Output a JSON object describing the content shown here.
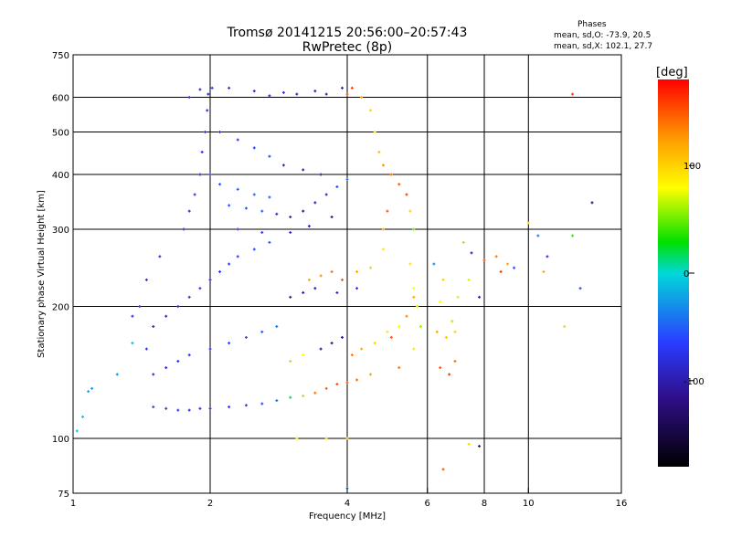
{
  "header": {
    "title_line1": "Tromsø 20141215 20:56:00–20:57:43",
    "title_line2": "RwPretec (8p)"
  },
  "phases_box": {
    "title": "Phases",
    "line_O": "mean, sd,O: -73.9, 20.5",
    "line_X": "mean, sd,X: 102.1, 27.7"
  },
  "colorbar": {
    "unit_label": "[deg]",
    "ticks": [
      {
        "value": 100,
        "label": "100"
      },
      {
        "value": 0,
        "label": "0"
      },
      {
        "value": -100,
        "label": "-100"
      }
    ],
    "range": [
      -180,
      180
    ]
  },
  "chart_data": {
    "type": "scatter",
    "title": "Tromsø 20141215 20:56:00–20:57:43",
    "subtitle": "RwPretec (8p)",
    "xlabel": "Frequency [MHz]",
    "ylabel": "Stationary phase Virtual Height [km]",
    "x_scale": "log",
    "y_scale": "log",
    "xlim": [
      1,
      16
    ],
    "ylim": [
      75,
      750
    ],
    "x_ticks": [
      {
        "value": 1,
        "label": "1"
      },
      {
        "value": 2,
        "label": "2"
      },
      {
        "value": 4,
        "label": "4"
      },
      {
        "value": 6,
        "label": "6"
      },
      {
        "value": 8,
        "label": "8"
      },
      {
        "value": 10,
        "label": "10"
      },
      {
        "value": 16,
        "label": "16"
      }
    ],
    "y_ticks": [
      {
        "value": 75,
        "label": "75"
      },
      {
        "value": 100,
        "label": "100"
      },
      {
        "value": 200,
        "label": "200"
      },
      {
        "value": 300,
        "label": "300"
      },
      {
        "value": 400,
        "label": "400"
      },
      {
        "value": 500,
        "label": "500"
      },
      {
        "value": 600,
        "label": "600"
      },
      {
        "value": 750,
        "label": "750"
      }
    ],
    "grid_x": [
      2,
      4,
      6,
      8,
      10
    ],
    "grid_y": [
      100,
      200,
      300,
      400,
      500,
      600
    ],
    "color_by": "phase_deg",
    "points": [
      [
        1.02,
        104,
        -5
      ],
      [
        1.05,
        112,
        -10
      ],
      [
        1.08,
        128,
        -20
      ],
      [
        1.1,
        130,
        -30
      ],
      [
        1.25,
        140,
        -25
      ],
      [
        1.35,
        165,
        -15
      ],
      [
        1.5,
        118,
        -60
      ],
      [
        1.6,
        117,
        -70
      ],
      [
        1.7,
        116,
        -75
      ],
      [
        1.8,
        116,
        -80
      ],
      [
        1.9,
        117,
        -80
      ],
      [
        2.0,
        117,
        -78
      ],
      [
        2.2,
        118,
        -75
      ],
      [
        2.4,
        119,
        -70
      ],
      [
        2.6,
        120,
        -60
      ],
      [
        2.8,
        122,
        -40
      ],
      [
        3.0,
        124,
        20
      ],
      [
        3.2,
        125,
        60
      ],
      [
        3.4,
        127,
        140
      ],
      [
        3.6,
        130,
        150
      ],
      [
        3.8,
        133,
        155
      ],
      [
        4.0,
        134,
        150
      ],
      [
        4.2,
        136,
        140
      ],
      [
        4.5,
        140,
        120
      ],
      [
        1.5,
        140,
        -80
      ],
      [
        1.6,
        145,
        -85
      ],
      [
        1.7,
        150,
        -80
      ],
      [
        1.8,
        155,
        -75
      ],
      [
        2.0,
        160,
        -70
      ],
      [
        2.2,
        165,
        -65
      ],
      [
        2.4,
        170,
        -60
      ],
      [
        2.6,
        175,
        -55
      ],
      [
        2.8,
        180,
        -40
      ],
      [
        3.0,
        150,
        60
      ],
      [
        3.2,
        155,
        80
      ],
      [
        3.5,
        160,
        -110
      ],
      [
        3.7,
        165,
        -120
      ],
      [
        3.9,
        170,
        -110
      ],
      [
        4.1,
        155,
        140
      ],
      [
        4.3,
        160,
        120
      ],
      [
        4.6,
        165,
        100
      ],
      [
        4.9,
        175,
        90
      ],
      [
        5.2,
        180,
        80
      ],
      [
        1.6,
        190,
        -85
      ],
      [
        1.7,
        200,
        -80
      ],
      [
        1.8,
        210,
        -75
      ],
      [
        1.9,
        220,
        -70
      ],
      [
        2.0,
        230,
        -80
      ],
      [
        2.1,
        240,
        -75
      ],
      [
        2.2,
        250,
        -70
      ],
      [
        2.3,
        260,
        -65
      ],
      [
        2.5,
        270,
        -60
      ],
      [
        2.7,
        280,
        -55
      ],
      [
        1.75,
        300,
        -85
      ],
      [
        1.8,
        330,
        -80
      ],
      [
        1.85,
        360,
        -75
      ],
      [
        1.9,
        400,
        -85
      ],
      [
        1.92,
        450,
        -80
      ],
      [
        1.95,
        500,
        -75
      ],
      [
        1.97,
        560,
        -80
      ],
      [
        1.98,
        610,
        -85
      ],
      [
        2.02,
        630,
        -70
      ],
      [
        2.2,
        340,
        -60
      ],
      [
        2.4,
        335,
        -55
      ],
      [
        2.6,
        330,
        -50
      ],
      [
        2.8,
        325,
        -90
      ],
      [
        3.0,
        320,
        -100
      ],
      [
        3.2,
        330,
        -110
      ],
      [
        3.4,
        345,
        -100
      ],
      [
        3.6,
        360,
        -90
      ],
      [
        3.8,
        375,
        -60
      ],
      [
        4.0,
        390,
        -40
      ],
      [
        2.3,
        300,
        -70
      ],
      [
        2.6,
        295,
        -65
      ],
      [
        3.0,
        295,
        -90
      ],
      [
        3.3,
        305,
        -100
      ],
      [
        3.7,
        320,
        -110
      ],
      [
        3.3,
        230,
        120
      ],
      [
        3.5,
        235,
        130
      ],
      [
        3.7,
        240,
        140
      ],
      [
        3.9,
        230,
        150
      ],
      [
        4.2,
        240,
        120
      ],
      [
        4.5,
        245,
        100
      ],
      [
        4.8,
        270,
        90
      ],
      [
        3.0,
        210,
        -110
      ],
      [
        3.2,
        215,
        -105
      ],
      [
        3.4,
        220,
        -100
      ],
      [
        3.8,
        215,
        -90
      ],
      [
        4.2,
        220,
        -80
      ],
      [
        4.0,
        610,
        150
      ],
      [
        4.1,
        630,
        160
      ],
      [
        4.3,
        600,
        120
      ],
      [
        4.5,
        560,
        100
      ],
      [
        4.6,
        500,
        90
      ],
      [
        4.7,
        450,
        110
      ],
      [
        4.8,
        420,
        130
      ],
      [
        5.0,
        400,
        140
      ],
      [
        5.2,
        380,
        150
      ],
      [
        5.4,
        360,
        160
      ],
      [
        5.5,
        330,
        100
      ],
      [
        5.6,
        300,
        50
      ],
      [
        5.5,
        250,
        90
      ],
      [
        5.6,
        220,
        80
      ],
      [
        5.7,
        200,
        70
      ],
      [
        5.8,
        180,
        60
      ],
      [
        5.6,
        160,
        90
      ],
      [
        6.3,
        175,
        120
      ],
      [
        6.6,
        170,
        110
      ],
      [
        6.9,
        175,
        100
      ],
      [
        6.4,
        145,
        150
      ],
      [
        6.7,
        140,
        160
      ],
      [
        6.9,
        150,
        140
      ],
      [
        7.5,
        265,
        -90
      ],
      [
        8.0,
        255,
        150
      ],
      [
        8.5,
        260,
        140
      ],
      [
        9.0,
        250,
        120
      ],
      [
        8.7,
        240,
        160
      ],
      [
        9.3,
        245,
        -60
      ],
      [
        10.0,
        310,
        90
      ],
      [
        10.5,
        290,
        -40
      ],
      [
        11.0,
        260,
        -80
      ],
      [
        10.8,
        240,
        120
      ],
      [
        12.5,
        290,
        40
      ],
      [
        13.0,
        220,
        -60
      ],
      [
        7.2,
        280,
        60
      ],
      [
        7.4,
        230,
        70
      ],
      [
        7.8,
        210,
        -100
      ],
      [
        12.5,
        610,
        160
      ],
      [
        12.0,
        180,
        100
      ],
      [
        13.8,
        345,
        -120
      ],
      [
        3.1,
        100,
        90
      ],
      [
        3.6,
        100,
        100
      ],
      [
        4.0,
        100,
        110
      ],
      [
        7.4,
        97,
        100
      ],
      [
        7.8,
        96,
        -120
      ],
      [
        6.5,
        85,
        150
      ],
      [
        4.0,
        77,
        -20
      ],
      [
        1.8,
        600,
        -70
      ],
      [
        1.9,
        625,
        -85
      ],
      [
        2.2,
        630,
        -80
      ],
      [
        2.5,
        620,
        -85
      ],
      [
        2.7,
        605,
        -90
      ],
      [
        2.9,
        615,
        -80
      ],
      [
        3.1,
        610,
        -90
      ],
      [
        3.4,
        620,
        -100
      ],
      [
        3.6,
        610,
        -95
      ],
      [
        3.9,
        630,
        -100
      ],
      [
        2.1,
        500,
        -75
      ],
      [
        2.3,
        480,
        -70
      ],
      [
        2.5,
        460,
        -65
      ],
      [
        2.7,
        440,
        -60
      ],
      [
        2.9,
        420,
        -90
      ],
      [
        3.2,
        410,
        -100
      ],
      [
        3.5,
        400,
        -105
      ],
      [
        1.55,
        260,
        -80
      ],
      [
        1.45,
        230,
        -75
      ],
      [
        1.4,
        200,
        -70
      ],
      [
        1.5,
        180,
        -80
      ],
      [
        1.35,
        190,
        -75
      ],
      [
        1.45,
        160,
        -70
      ],
      [
        2.0,
        400,
        -60
      ],
      [
        2.1,
        380,
        -55
      ],
      [
        2.3,
        370,
        -50
      ],
      [
        2.5,
        360,
        -45
      ],
      [
        2.7,
        355,
        -50
      ],
      [
        5.0,
        170,
        150
      ],
      [
        5.2,
        145,
        140
      ],
      [
        5.4,
        190,
        130
      ],
      [
        5.6,
        210,
        120
      ],
      [
        4.8,
        300,
        120
      ],
      [
        4.9,
        330,
        150
      ],
      [
        6.2,
        250,
        -30
      ],
      [
        6.4,
        205,
        80
      ],
      [
        6.5,
        230,
        100
      ],
      [
        7.0,
        210,
        70
      ],
      [
        6.8,
        185,
        60
      ]
    ]
  }
}
